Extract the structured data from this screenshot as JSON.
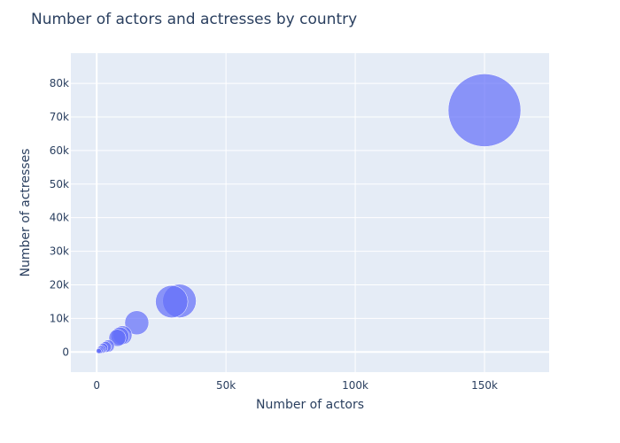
{
  "chart_data": {
    "type": "scatter",
    "title": "Number of actors and actresses by country",
    "xlabel": "Number of actors",
    "ylabel": "Number of actresses",
    "xlim": [
      -10000,
      175000
    ],
    "ylim": [
      -6000,
      89000
    ],
    "x_ticks": [
      0,
      50000,
      100000,
      150000
    ],
    "x_tick_labels": [
      "0",
      "50k",
      "100k",
      "150k"
    ],
    "y_ticks": [
      0,
      10000,
      20000,
      30000,
      40000,
      50000,
      60000,
      70000,
      80000
    ],
    "y_tick_labels": [
      "0",
      "10k",
      "20k",
      "30k",
      "40k",
      "50k",
      "60k",
      "70k",
      "80k"
    ],
    "grid": true,
    "marker_color": "#636efa",
    "plot_background": "#e5ecf6",
    "points": [
      {
        "x": 150000,
        "y": 72000,
        "size": 222000
      },
      {
        "x": 32000,
        "y": 15200,
        "size": 47200
      },
      {
        "x": 29000,
        "y": 15000,
        "size": 44000
      },
      {
        "x": 15500,
        "y": 8700,
        "size": 24200
      },
      {
        "x": 10000,
        "y": 5000,
        "size": 15000
      },
      {
        "x": 9000,
        "y": 4700,
        "size": 13700
      },
      {
        "x": 8000,
        "y": 4200,
        "size": 12200
      },
      {
        "x": 4500,
        "y": 1800,
        "size": 6300
      },
      {
        "x": 3500,
        "y": 1500,
        "size": 5000
      },
      {
        "x": 2500,
        "y": 1200,
        "size": 3700
      },
      {
        "x": 2000,
        "y": 800,
        "size": 2800
      },
      {
        "x": 1500,
        "y": 700,
        "size": 2200
      },
      {
        "x": 1200,
        "y": 400,
        "size": 1600
      },
      {
        "x": 800,
        "y": 300,
        "size": 1100
      }
    ]
  }
}
